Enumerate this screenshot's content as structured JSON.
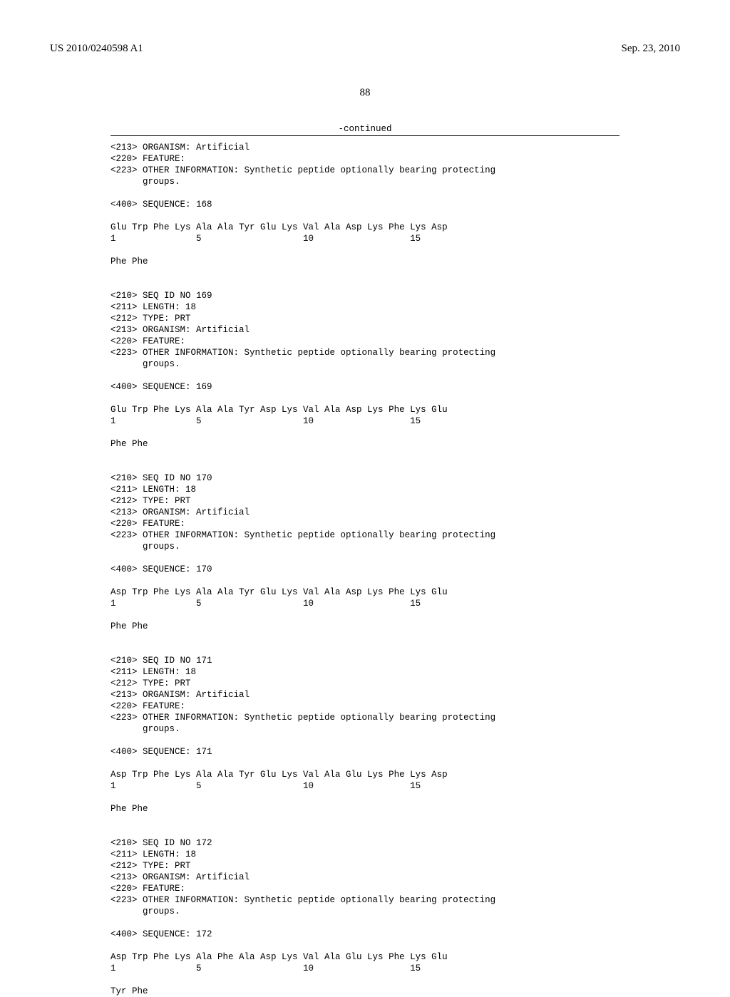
{
  "header": {
    "pub_number": "US 2010/0240598 A1",
    "pub_date": "Sep. 23, 2010"
  },
  "page_number": "88",
  "continued_label": "-continued",
  "blocks": [
    {
      "lines": [
        "<213> ORGANISM: Artificial",
        "<220> FEATURE:",
        "<223> OTHER INFORMATION: Synthetic peptide optionally bearing protecting",
        "      groups.",
        "",
        "<400> SEQUENCE: 168",
        "",
        "Glu Trp Phe Lys Ala Ala Tyr Glu Lys Val Ala Asp Lys Phe Lys Asp",
        "1               5                   10                  15",
        "",
        "Phe Phe",
        "",
        "",
        "<210> SEQ ID NO 169",
        "<211> LENGTH: 18",
        "<212> TYPE: PRT",
        "<213> ORGANISM: Artificial",
        "<220> FEATURE:",
        "<223> OTHER INFORMATION: Synthetic peptide optionally bearing protecting",
        "      groups.",
        "",
        "<400> SEQUENCE: 169",
        "",
        "Glu Trp Phe Lys Ala Ala Tyr Asp Lys Val Ala Asp Lys Phe Lys Glu",
        "1               5                   10                  15",
        "",
        "Phe Phe",
        "",
        "",
        "<210> SEQ ID NO 170",
        "<211> LENGTH: 18",
        "<212> TYPE: PRT",
        "<213> ORGANISM: Artificial",
        "<220> FEATURE:",
        "<223> OTHER INFORMATION: Synthetic peptide optionally bearing protecting",
        "      groups.",
        "",
        "<400> SEQUENCE: 170",
        "",
        "Asp Trp Phe Lys Ala Ala Tyr Glu Lys Val Ala Asp Lys Phe Lys Glu",
        "1               5                   10                  15",
        "",
        "Phe Phe",
        "",
        "",
        "<210> SEQ ID NO 171",
        "<211> LENGTH: 18",
        "<212> TYPE: PRT",
        "<213> ORGANISM: Artificial",
        "<220> FEATURE:",
        "<223> OTHER INFORMATION: Synthetic peptide optionally bearing protecting",
        "      groups.",
        "",
        "<400> SEQUENCE: 171",
        "",
        "Asp Trp Phe Lys Ala Ala Tyr Glu Lys Val Ala Glu Lys Phe Lys Asp",
        "1               5                   10                  15",
        "",
        "Phe Phe",
        "",
        "",
        "<210> SEQ ID NO 172",
        "<211> LENGTH: 18",
        "<212> TYPE: PRT",
        "<213> ORGANISM: Artificial",
        "<220> FEATURE:",
        "<223> OTHER INFORMATION: Synthetic peptide optionally bearing protecting",
        "      groups.",
        "",
        "<400> SEQUENCE: 172",
        "",
        "Asp Trp Phe Lys Ala Phe Ala Asp Lys Val Ala Glu Lys Phe Lys Glu",
        "1               5                   10                  15",
        "",
        "Tyr Phe"
      ]
    }
  ]
}
